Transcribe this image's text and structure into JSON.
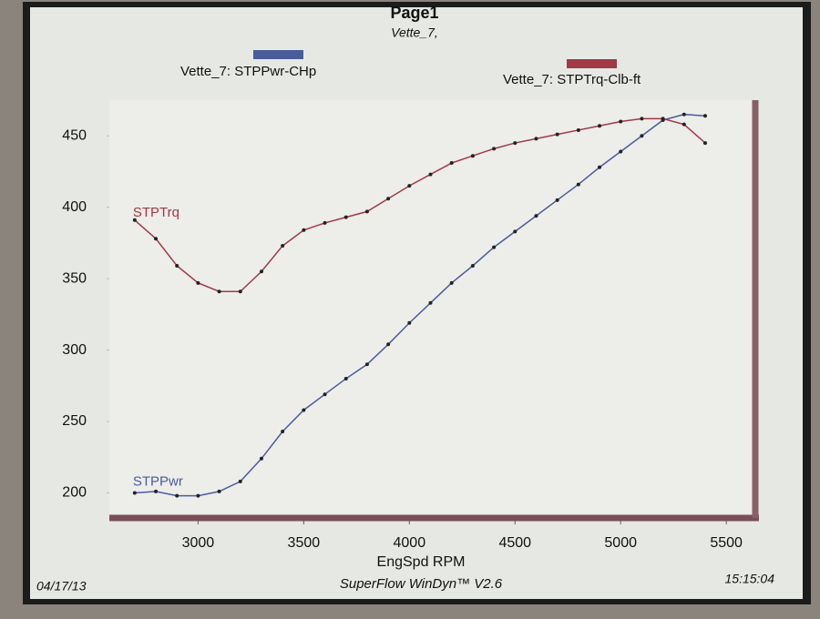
{
  "chart_data": {
    "type": "line",
    "title": "Page1",
    "subtitle": "Vette_7,",
    "x_label": "EngSpd RPM",
    "footer_left": "04/17/13",
    "footer_center": "SuperFlow WinDyn™ V2.6",
    "footer_right": "15:15:04",
    "x": [
      2700,
      2800,
      2900,
      3000,
      3100,
      3200,
      3300,
      3400,
      3500,
      3600,
      3700,
      3800,
      3900,
      4000,
      4100,
      4200,
      4300,
      4400,
      4500,
      4600,
      4700,
      4800,
      4900,
      5000,
      5100,
      5200,
      5300,
      5400
    ],
    "series": [
      {
        "name": "Vette_7: STPPwr-CHp",
        "annotation": "STPPwr",
        "color": "#4a5c9a",
        "values": [
          200,
          201,
          198,
          198,
          201,
          208,
          224,
          243,
          258,
          269,
          280,
          290,
          304,
          319,
          333,
          347,
          359,
          372,
          383,
          394,
          405,
          416,
          428,
          439,
          450,
          461,
          465,
          464
        ]
      },
      {
        "name": "Vette_7: STPTrq-Clb-ft",
        "annotation": "STPTrq",
        "color": "#a03a44",
        "values": [
          391,
          378,
          359,
          347,
          341,
          341,
          355,
          373,
          384,
          389,
          393,
          397,
          406,
          415,
          423,
          431,
          436,
          441,
          445,
          448,
          451,
          454,
          457,
          460,
          462,
          462,
          458,
          445
        ]
      }
    ],
    "xlim": [
      2580,
      5620
    ],
    "ylim": [
      185,
      475
    ],
    "xticks": [
      3000,
      3500,
      4000,
      4500,
      5000,
      5500
    ],
    "yticks": [
      200,
      250,
      300,
      350,
      400,
      450
    ],
    "grid": false,
    "markers": true
  }
}
